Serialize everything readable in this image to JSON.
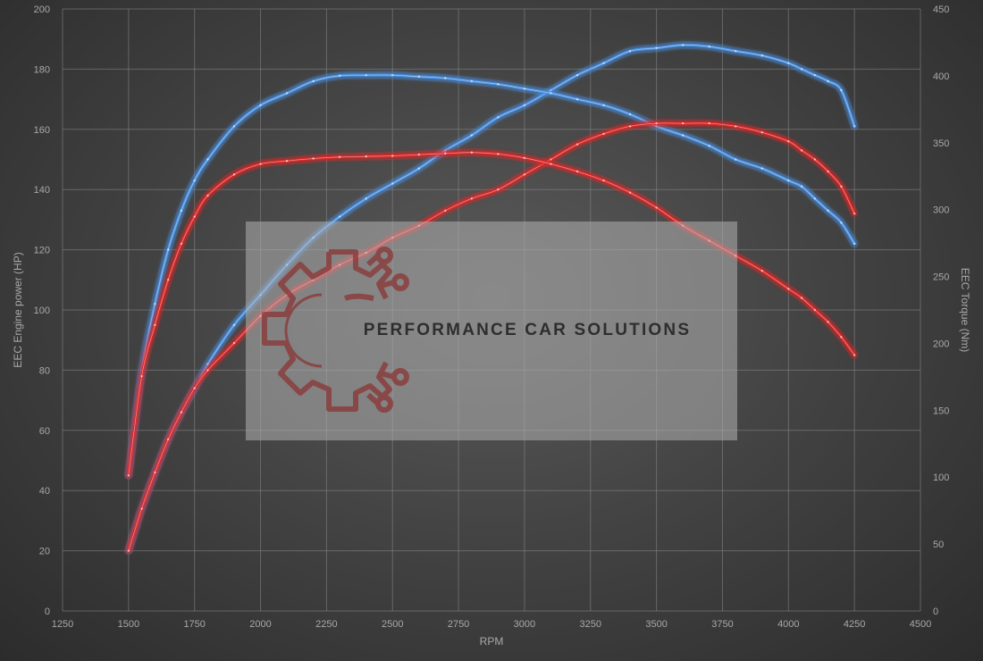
{
  "chart_data": {
    "type": "line",
    "xlabel": "RPM",
    "ylabel_left": "EEC Engine power (HP)",
    "ylabel_right": "EEC Torque (Nm)",
    "xlim": [
      1250,
      4500
    ],
    "ylim_left": [
      0,
      200
    ],
    "ylim_right": [
      0,
      450
    ],
    "x_ticks": [
      1250,
      1500,
      1750,
      2000,
      2250,
      2500,
      2750,
      3000,
      3250,
      3500,
      3750,
      4000,
      4250,
      4500
    ],
    "y_left_ticks": [
      0,
      20,
      40,
      60,
      80,
      100,
      120,
      140,
      160,
      180,
      200
    ],
    "y_right_ticks": [
      0,
      50,
      100,
      150,
      200,
      250,
      300,
      350,
      400,
      450
    ],
    "grid": true,
    "colors": {
      "tuned": "#4a90e2",
      "stock": "#e02828",
      "grid": "#8a8a8a",
      "text": "#a8a8a8"
    },
    "series": [
      {
        "axis": "left",
        "color": "#4a90e2",
        "x": [
          1500,
          1550,
          1600,
          1650,
          1700,
          1750,
          1800,
          1900,
          2000,
          2100,
          2200,
          2300,
          2400,
          2500,
          2600,
          2700,
          2800,
          2900,
          3000,
          3100,
          3200,
          3300,
          3400,
          3500,
          3600,
          3700,
          3800,
          3900,
          4000,
          4050,
          4100,
          4150,
          4200,
          4250
        ],
        "y": [
          20,
          34,
          46,
          57,
          66,
          74,
          82,
          95,
          105,
          115,
          124,
          131,
          137,
          142,
          147,
          153,
          158,
          164,
          168,
          173,
          178,
          182,
          186,
          187,
          188,
          187.5,
          186,
          184.5,
          182,
          180,
          178,
          176,
          173,
          161
        ]
      },
      {
        "axis": "left",
        "color": "#4a90e2",
        "x": [
          1500,
          1550,
          1600,
          1650,
          1700,
          1750,
          1800,
          1900,
          2000,
          2100,
          2200,
          2300,
          2400,
          2500,
          2600,
          2700,
          2800,
          2900,
          3000,
          3100,
          3200,
          3300,
          3400,
          3500,
          3600,
          3700,
          3800,
          3900,
          4000,
          4050,
          4100,
          4150,
          4200,
          4250
        ],
        "y": [
          45,
          80,
          102,
          120,
          133,
          143,
          150,
          161,
          168,
          172,
          176,
          177.8,
          178,
          178,
          177.5,
          177,
          176,
          175,
          173.5,
          172,
          170,
          168,
          165,
          161,
          158,
          154.5,
          150,
          147,
          143,
          141,
          137,
          133,
          129,
          122
        ]
      },
      {
        "axis": "left",
        "color": "#e02828",
        "x": [
          1500,
          1550,
          1600,
          1650,
          1700,
          1750,
          1800,
          1900,
          2000,
          2100,
          2200,
          2300,
          2400,
          2500,
          2600,
          2700,
          2800,
          2900,
          3000,
          3100,
          3200,
          3300,
          3400,
          3500,
          3600,
          3700,
          3800,
          3900,
          4000,
          4050,
          4100,
          4150,
          4200,
          4250
        ],
        "y": [
          20,
          34,
          46,
          57,
          66,
          74,
          80,
          89,
          98,
          105,
          110,
          115,
          119,
          124,
          128,
          133,
          137,
          140,
          145,
          150,
          155,
          158.5,
          161,
          162,
          162,
          162,
          161,
          159,
          156,
          153,
          150,
          146,
          141,
          132
        ]
      },
      {
        "axis": "left",
        "color": "#e02828",
        "x": [
          1500,
          1550,
          1600,
          1650,
          1700,
          1750,
          1800,
          1900,
          2000,
          2100,
          2200,
          2300,
          2400,
          2500,
          2600,
          2700,
          2800,
          2900,
          3000,
          3100,
          3200,
          3300,
          3400,
          3500,
          3600,
          3700,
          3800,
          3900,
          4000,
          4050,
          4100,
          4150,
          4200,
          4250
        ],
        "y": [
          45,
          78,
          95,
          110,
          122,
          131,
          138,
          145,
          148.5,
          149.5,
          150.3,
          150.8,
          151,
          151.2,
          151.6,
          152,
          152.3,
          151.8,
          150.5,
          148.5,
          146,
          143,
          139,
          134,
          128,
          123,
          118,
          113,
          107,
          104,
          100,
          96,
          91,
          85
        ]
      }
    ]
  },
  "watermark": {
    "text": "PERFORMANCE CAR SOLUTIONS",
    "logo_icon": "gear-circuit-logo-icon",
    "logo_color": "#8b3535"
  }
}
